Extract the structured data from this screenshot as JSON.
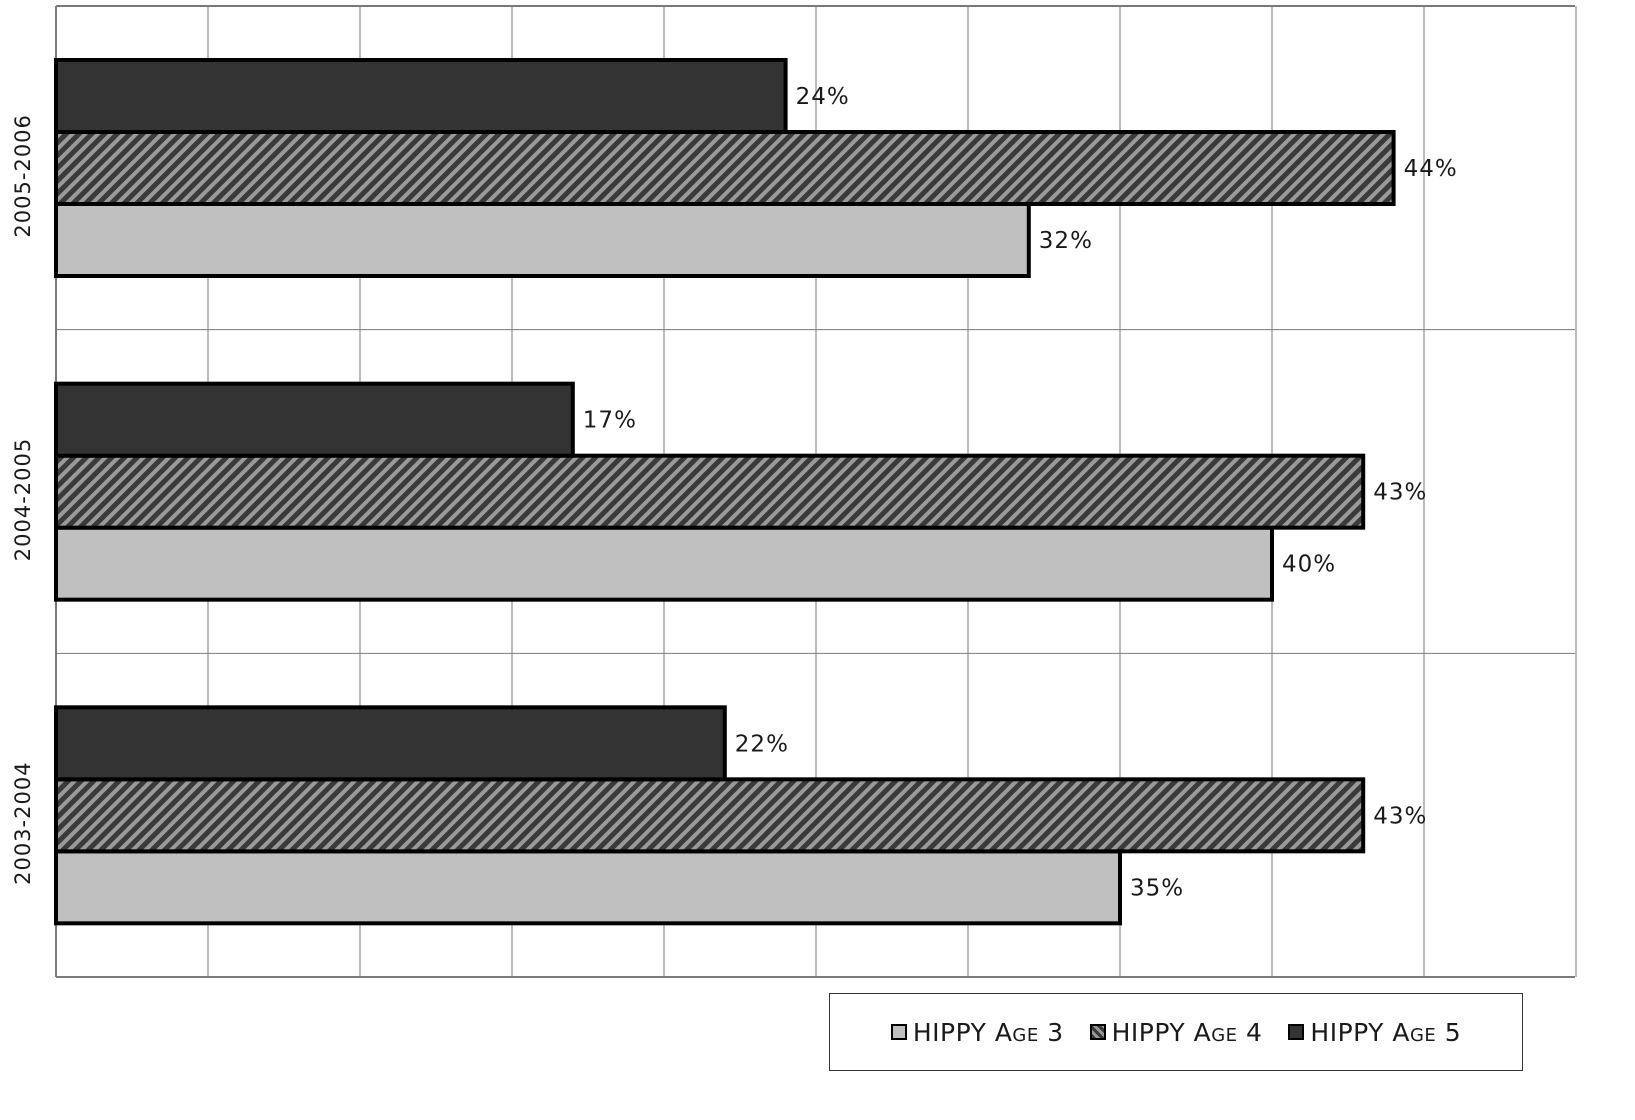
{
  "chart_data": {
    "type": "bar",
    "orientation": "horizontal",
    "categories": [
      "2003-2004",
      "2004-2005",
      "2005-2006"
    ],
    "series": [
      {
        "name": "HIPPY Age 3",
        "values": [
          35,
          40,
          32
        ],
        "labels": [
          "35%",
          "40%",
          "32%"
        ],
        "color": "#c0c0c0",
        "pattern": "solid"
      },
      {
        "name": "HIPPY Age 4",
        "values": [
          43,
          43,
          44
        ],
        "labels": [
          "43%",
          "43%",
          "44%"
        ],
        "color": "#4a4a4a",
        "pattern": "diagonal-stripes"
      },
      {
        "name": "HIPPY Age 5",
        "values": [
          22,
          17,
          24
        ],
        "labels": [
          "22%",
          "17%",
          "24%"
        ],
        "color": "#333333",
        "pattern": "solid"
      }
    ],
    "xlim": [
      0,
      50
    ],
    "x_gridline_step": 5,
    "grid": true,
    "legend_position": "bottom-right",
    "title": "",
    "xlabel": "",
    "ylabel": ""
  }
}
